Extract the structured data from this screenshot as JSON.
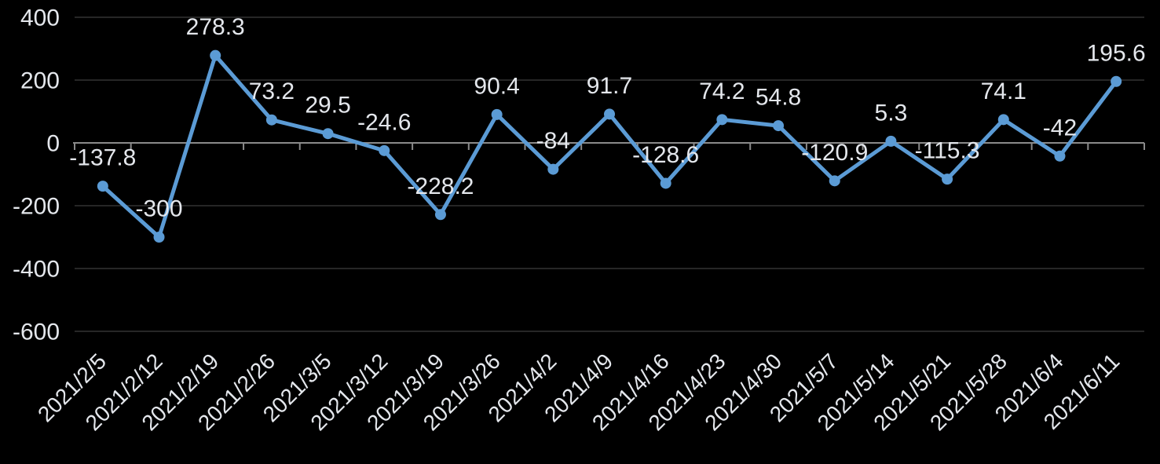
{
  "chart": {
    "background": "#000000",
    "colors": {
      "line": "#5b9bd5",
      "marker": "#5b9bd5",
      "text": "#e4e7ec",
      "gridline": "#262626",
      "axis": "#8a8a8a"
    }
  },
  "chart_data": {
    "type": "line",
    "title": "",
    "legend": "none",
    "grid": true,
    "categories": [
      "2021/2/5",
      "2021/2/12",
      "2021/2/19",
      "2021/2/26",
      "2021/3/5",
      "2021/3/12",
      "2021/3/19",
      "2021/3/26",
      "2021/4/2",
      "2021/4/9",
      "2021/4/16",
      "2021/4/23",
      "2021/4/30",
      "2021/5/7",
      "2021/5/14",
      "2021/5/21",
      "2021/5/28",
      "2021/6/4",
      "2021/6/11"
    ],
    "series": [
      {
        "name": "",
        "values": [
          -137.8,
          -300,
          278.3,
          73.2,
          29.5,
          -24.6,
          -228.2,
          90.4,
          -84,
          91.7,
          -128.6,
          74.2,
          54.8,
          -120.9,
          5.3,
          -115.3,
          74.1,
          -42,
          195.6
        ],
        "data_labels": [
          "-137.8",
          "-300",
          "278.3",
          "73.2",
          "29.5",
          "-24.6",
          "-228.2",
          "90.4",
          "-84",
          "91.7",
          "-128.6",
          "74.2",
          "54.8",
          "-120.9",
          "5.3",
          "-115.3",
          "74.1",
          "-42",
          "195.6"
        ]
      }
    ],
    "xlabel": "",
    "ylabel": "",
    "ylim": [
      -600,
      400
    ],
    "yticks": [
      400,
      200,
      0,
      -200,
      -400,
      -600
    ],
    "ytick_labels": [
      "400",
      "200",
      "0",
      "-200",
      "-400",
      "-600"
    ]
  }
}
